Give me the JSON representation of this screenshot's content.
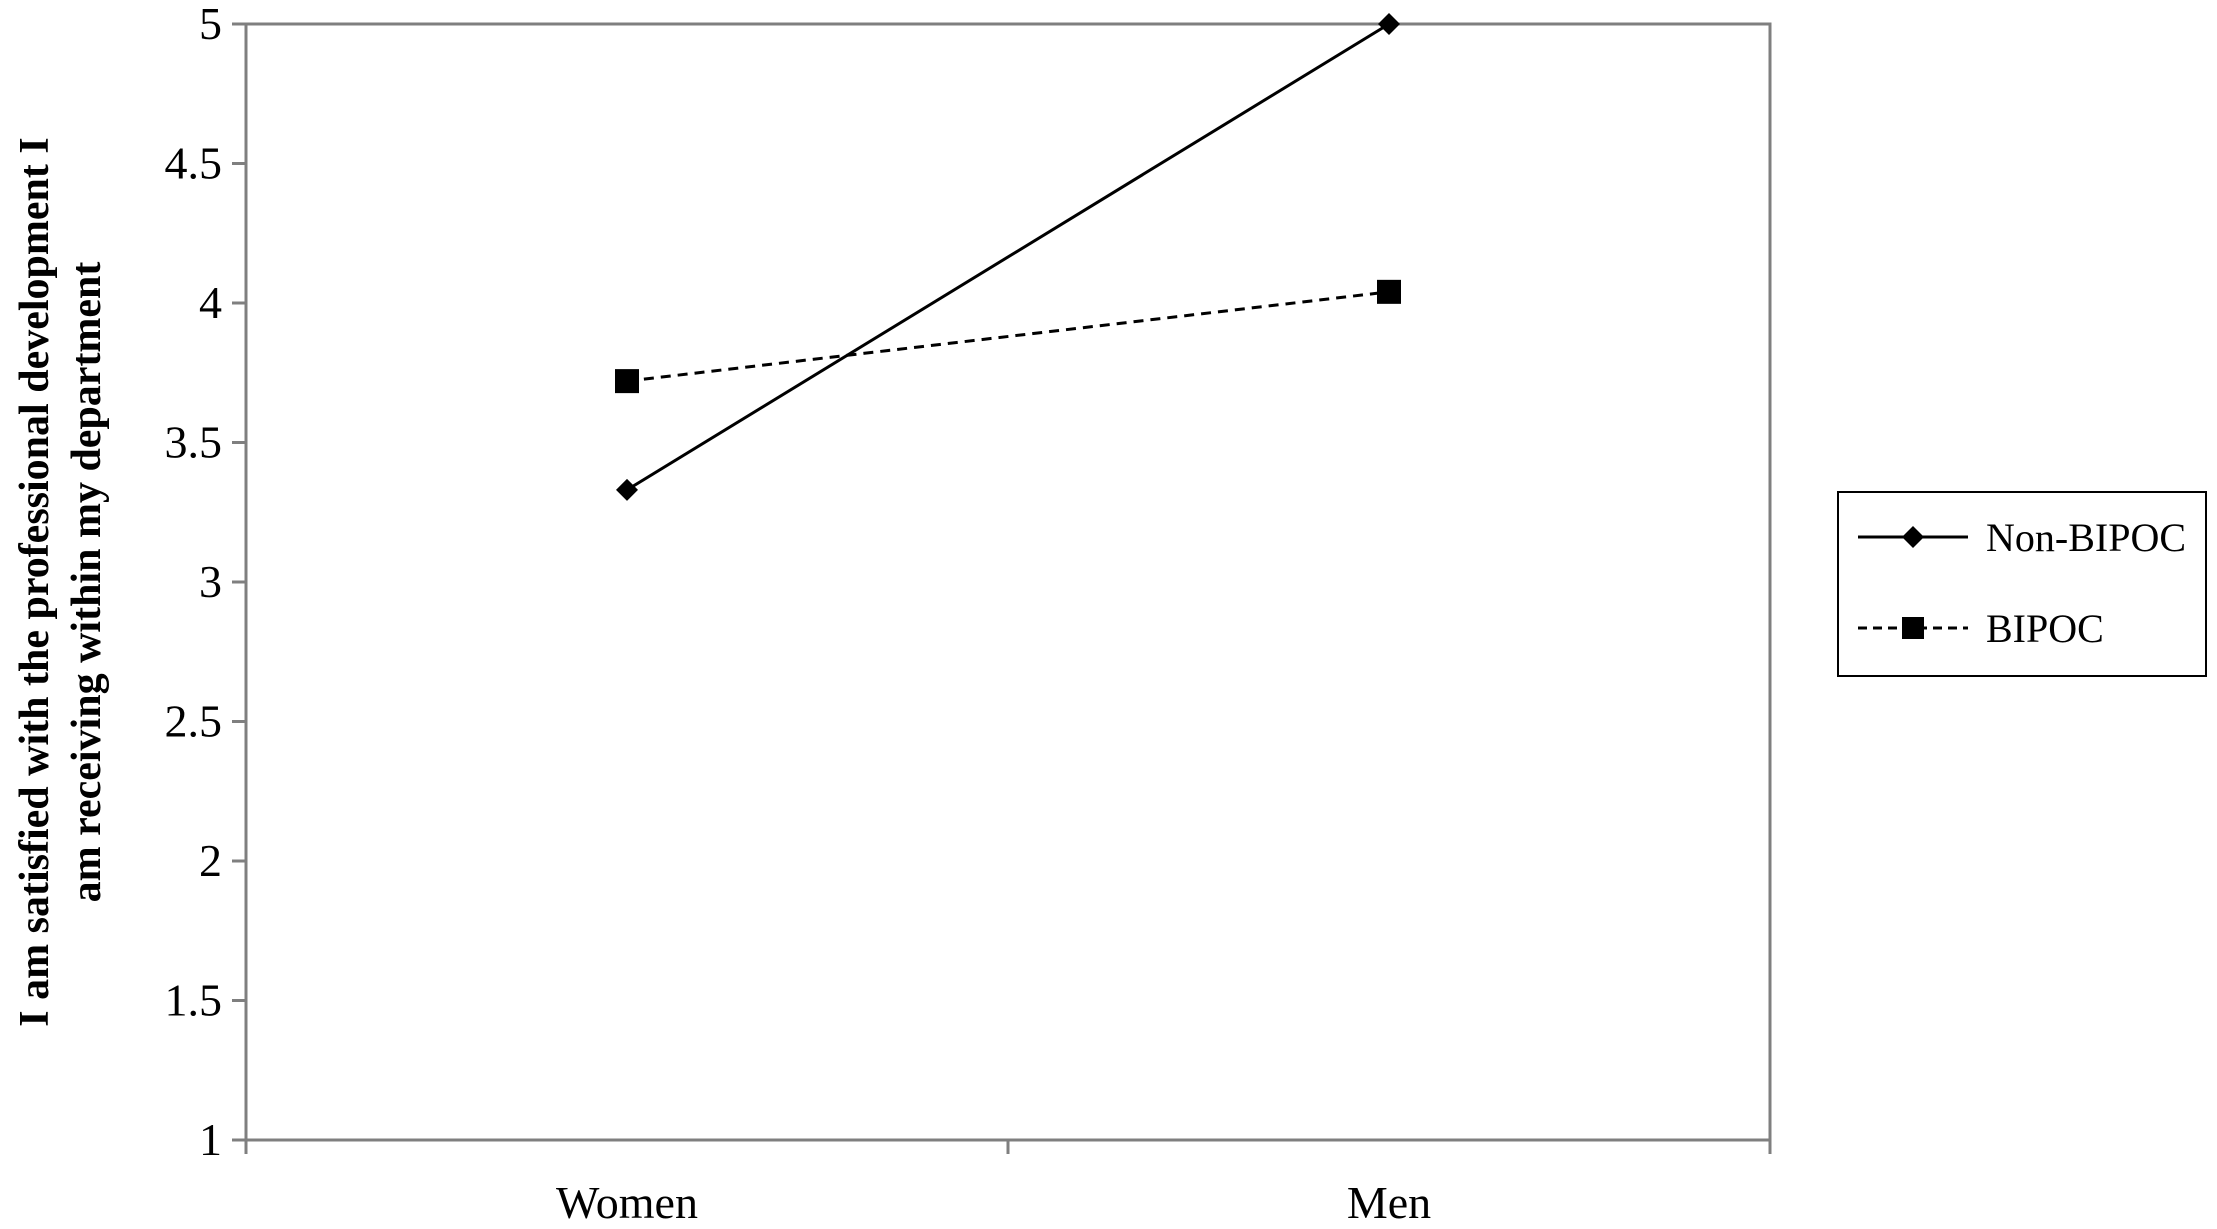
{
  "chart_data": {
    "type": "line",
    "title": "",
    "xlabel": "",
    "ylabel_lines": [
      "I am satisfied with the professional development I",
      "am receiving within my department"
    ],
    "ylim": [
      1,
      5
    ],
    "yticks": [
      "1",
      "1.5",
      "2",
      "2.5",
      "3",
      "3.5",
      "4",
      "4.5",
      "5"
    ],
    "categories": [
      "Women",
      "Men"
    ],
    "series": [
      {
        "name": "Non-BIPOC",
        "values": [
          3.33,
          5.0
        ],
        "line_style": "solid",
        "marker": "diamond",
        "color": "#000000"
      },
      {
        "name": "BIPOC",
        "values": [
          3.72,
          4.04
        ],
        "line_style": "dashed",
        "marker": "square",
        "color": "#000000"
      }
    ],
    "legend_position": "right",
    "grid": false
  }
}
